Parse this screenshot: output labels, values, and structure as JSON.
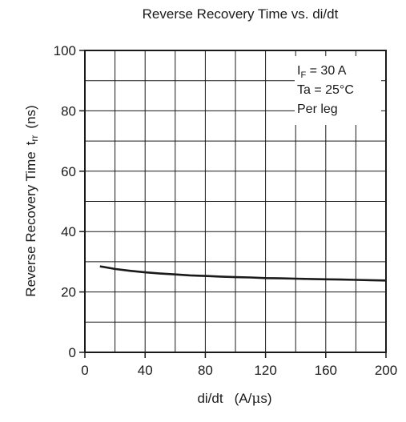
{
  "chart_data": {
    "type": "line",
    "title": "Reverse Recovery Time vs. di/dt",
    "xlabel": {
      "main": "di/dt",
      "unit_prefix": "(A/",
      "unit_mu": "μ",
      "unit_suffix": "s)"
    },
    "ylabel": {
      "main": "Reverse Recovery Time",
      "symbol": "t",
      "symbol_sub": "rr",
      "unit": "(ns)"
    },
    "xlim": [
      0,
      200
    ],
    "ylim": [
      0,
      100
    ],
    "x_ticks": [
      0,
      40,
      80,
      120,
      160,
      200
    ],
    "y_ticks": [
      0,
      20,
      40,
      60,
      80,
      100
    ],
    "x_tick_labels": [
      "0",
      "40",
      "80",
      "120",
      "160",
      "200"
    ],
    "y_tick_labels": [
      "0",
      "20",
      "40",
      "60",
      "80",
      "100"
    ],
    "x_grid_step": 20,
    "y_grid_step": 10,
    "grid": true,
    "annotation": {
      "line1_symbol": "I",
      "line1_sub": "F",
      "line1_rest": " = 30 A",
      "line2": "Ta = 25°C",
      "line3": "Per leg"
    },
    "series": [
      {
        "x": [
          10,
          20,
          30,
          40,
          50,
          60,
          70,
          80,
          90,
          100,
          110,
          120,
          130,
          140,
          150,
          160,
          170,
          180,
          190,
          200
        ],
        "y": [
          28.5,
          27.6,
          27.0,
          26.5,
          26.1,
          25.8,
          25.5,
          25.3,
          25.1,
          24.9,
          24.8,
          24.6,
          24.5,
          24.4,
          24.3,
          24.2,
          24.1,
          24.0,
          23.9,
          23.8
        ]
      }
    ]
  }
}
